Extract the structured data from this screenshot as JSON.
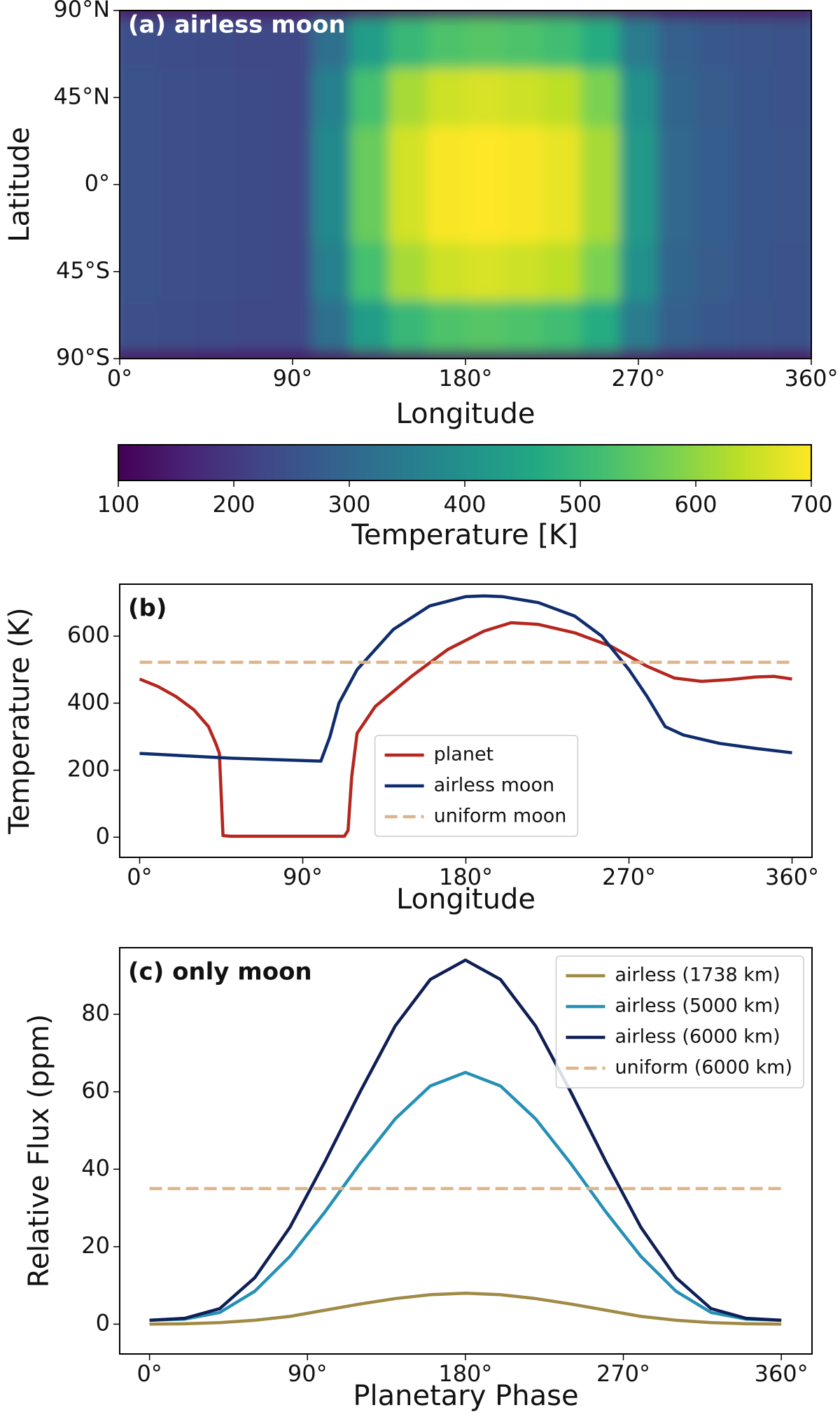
{
  "chart_data": [
    {
      "type": "heatmap",
      "title": "(a) airless moon",
      "xlabel": "Longitude",
      "ylabel": "Latitude",
      "colormap": "viridis",
      "xlim": [
        0,
        360
      ],
      "ylim": [
        -90,
        90
      ],
      "xticks": [
        {
          "value": 0,
          "label": "0°"
        },
        {
          "value": 90,
          "label": "90°"
        },
        {
          "value": 180,
          "label": "180°"
        },
        {
          "value": 270,
          "label": "270°"
        },
        {
          "value": 360,
          "label": "360°"
        }
      ],
      "yticks": [
        {
          "value": 90,
          "label": "90°N"
        },
        {
          "value": 45,
          "label": "45°N"
        },
        {
          "value": 0,
          "label": "0°"
        },
        {
          "value": -45,
          "label": "45°S"
        },
        {
          "value": -90,
          "label": "90°S"
        }
      ],
      "xbins": [
        0,
        20,
        40,
        60,
        80,
        100,
        120,
        140,
        160,
        180,
        200,
        220,
        240,
        260,
        280,
        300,
        320,
        340,
        360
      ],
      "ybins": [
        90,
        86,
        60,
        30,
        0,
        -30,
        -60,
        -86,
        -90
      ],
      "z": [
        [
          125,
          125,
          125,
          125,
          125,
          125,
          125,
          125,
          125,
          125,
          125,
          125,
          125,
          125,
          125,
          125,
          125,
          125
        ],
        [
          245,
          240,
          236,
          232,
          228,
          320,
          430,
          500,
          530,
          540,
          530,
          515,
          470,
          350,
          285,
          265,
          255,
          250
        ],
        [
          250,
          245,
          240,
          235,
          230,
          360,
          520,
          620,
          655,
          665,
          655,
          640,
          580,
          400,
          295,
          272,
          260,
          254
        ],
        [
          250,
          245,
          240,
          235,
          230,
          380,
          560,
          660,
          695,
          700,
          695,
          680,
          620,
          420,
          300,
          275,
          262,
          255
        ],
        [
          250,
          245,
          240,
          235,
          230,
          380,
          560,
          660,
          695,
          700,
          695,
          680,
          620,
          420,
          300,
          275,
          262,
          255
        ],
        [
          250,
          245,
          240,
          235,
          230,
          360,
          520,
          620,
          655,
          665,
          655,
          640,
          580,
          400,
          295,
          272,
          260,
          254
        ],
        [
          245,
          240,
          236,
          232,
          228,
          320,
          430,
          500,
          530,
          540,
          530,
          515,
          470,
          350,
          285,
          265,
          255,
          250
        ],
        [
          125,
          125,
          125,
          125,
          125,
          125,
          125,
          125,
          125,
          125,
          125,
          125,
          125,
          125,
          125,
          125,
          125,
          125
        ]
      ],
      "colorbar": {
        "label": "Temperature [K]",
        "lim": [
          100,
          700
        ],
        "ticks": [
          100,
          200,
          300,
          400,
          500,
          600,
          700
        ]
      }
    },
    {
      "type": "line",
      "title": "(b)",
      "xlabel": "Longitude",
      "ylabel": "Temperature (K)",
      "legend": "lower center",
      "xlim": [
        -11,
        371
      ],
      "ylim": [
        -60,
        755
      ],
      "xticks": [
        {
          "value": 0,
          "label": "0°"
        },
        {
          "value": 90,
          "label": "90°"
        },
        {
          "value": 180,
          "label": "180°"
        },
        {
          "value": 270,
          "label": "270°"
        },
        {
          "value": 360,
          "label": "360°"
        }
      ],
      "yticks": [
        0,
        200,
        400,
        600
      ],
      "series": [
        {
          "name": "planet",
          "color": "#b5261e",
          "linestyle": "solid",
          "x": [
            0,
            10,
            20,
            30,
            38,
            42,
            44,
            46,
            50,
            90,
            113,
            115,
            117,
            120,
            130,
            150,
            170,
            190,
            205,
            220,
            240,
            260,
            280,
            295,
            310,
            325,
            340,
            350,
            360
          ],
          "values": [
            472,
            450,
            420,
            380,
            330,
            280,
            250,
            5,
            3,
            3,
            3,
            20,
            180,
            310,
            390,
            480,
            560,
            615,
            640,
            635,
            610,
            570,
            510,
            475,
            465,
            470,
            478,
            480,
            472
          ]
        },
        {
          "name": "airless moon",
          "color": "#0f2d6e",
          "linestyle": "solid",
          "x": [
            0,
            50,
            100,
            105,
            110,
            120,
            140,
            160,
            180,
            190,
            200,
            220,
            240,
            255,
            270,
            280,
            290,
            300,
            320,
            340,
            360
          ],
          "values": [
            250,
            236,
            227,
            300,
            400,
            500,
            620,
            690,
            718,
            720,
            718,
            700,
            660,
            600,
            500,
            420,
            330,
            305,
            280,
            265,
            252
          ]
        },
        {
          "name": "uniform moon",
          "color": "#deb48a",
          "linestyle": "dashed",
          "x": [
            0,
            360
          ],
          "values": [
            522,
            522
          ]
        }
      ]
    },
    {
      "type": "line",
      "title": "(c) only moon",
      "xlabel": "Planetary Phase",
      "ylabel": "Relative Flux (ppm)",
      "legend": "upper right",
      "xlim": [
        -17,
        377.5
      ],
      "ylim": [
        -7.7,
        97.2
      ],
      "xticks": [
        {
          "value": 0,
          "label": "0°"
        },
        {
          "value": 90,
          "label": "90°"
        },
        {
          "value": 180,
          "label": "180°"
        },
        {
          "value": 270,
          "label": "270°"
        },
        {
          "value": 360,
          "label": "360°"
        }
      ],
      "yticks": [
        0,
        20,
        40,
        60,
        80
      ],
      "series": [
        {
          "name": "airless (1738 km)",
          "color": "#a08a45",
          "linestyle": "solid",
          "x": [
            0,
            20,
            40,
            60,
            80,
            100,
            120,
            140,
            160,
            180,
            200,
            220,
            240,
            260,
            280,
            300,
            320,
            340,
            360
          ],
          "values": [
            0,
            0.1,
            0.4,
            1,
            2,
            3.6,
            5.2,
            6.6,
            7.6,
            8,
            7.6,
            6.6,
            5.2,
            3.6,
            2,
            1,
            0.4,
            0.1,
            0
          ]
        },
        {
          "name": "airless (5000 km)",
          "color": "#2590b5",
          "linestyle": "solid",
          "x": [
            0,
            20,
            40,
            60,
            80,
            100,
            120,
            140,
            160,
            180,
            200,
            220,
            240,
            260,
            280,
            300,
            320,
            340,
            360
          ],
          "values": [
            1,
            1.3,
            3,
            8.5,
            17.5,
            29,
            41.5,
            53,
            61.5,
            65,
            61.5,
            53,
            41.5,
            29,
            17.5,
            8.5,
            3,
            1.3,
            1
          ]
        },
        {
          "name": "airless (6000 km)",
          "color": "#0f1f55",
          "linestyle": "solid",
          "x": [
            0,
            20,
            40,
            60,
            80,
            100,
            120,
            140,
            160,
            180,
            200,
            220,
            240,
            260,
            280,
            300,
            320,
            340,
            360
          ],
          "values": [
            1,
            1.5,
            4,
            12,
            25,
            42,
            60,
            77,
            89,
            94,
            89,
            77,
            60,
            42,
            25,
            12,
            4,
            1.5,
            1
          ]
        },
        {
          "name": "uniform (6000 km)",
          "color": "#deb48a",
          "linestyle": "dashed",
          "x": [
            0,
            360
          ],
          "values": [
            35,
            35
          ]
        }
      ]
    }
  ]
}
